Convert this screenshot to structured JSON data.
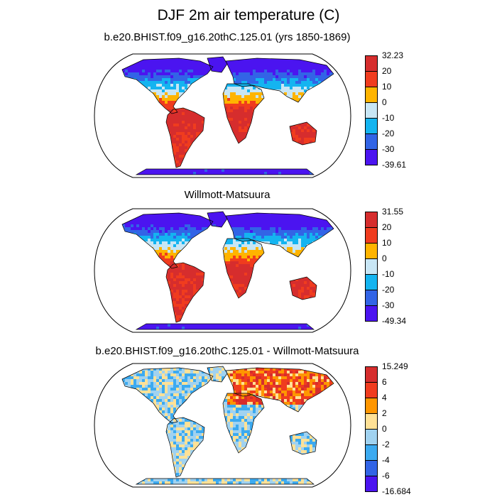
{
  "chart_data": [
    {
      "type": "heatmap",
      "title": "DJF 2m air temperature (C)",
      "subtitle": "b.e20.BHIST.f09_g16.20thC.125.01 (yrs 1850-1869)",
      "projection": "Robinson",
      "colorbar": {
        "labels": [
          "32.23",
          "20",
          "10",
          "0",
          "-10",
          "-20",
          "-30",
          "-39.61"
        ],
        "colors": [
          "#d62d2d",
          "#f03c1e",
          "#ffb400",
          "#c8e6f5",
          "#14b4f0",
          "#3264e6",
          "#4b14f0"
        ]
      }
    },
    {
      "type": "heatmap",
      "title": "Willmott-Matsuura",
      "projection": "Robinson",
      "colorbar": {
        "labels": [
          "31.55",
          "20",
          "10",
          "0",
          "-10",
          "-20",
          "-30",
          "-49.34"
        ],
        "colors": [
          "#d62d2d",
          "#f03c1e",
          "#ffb400",
          "#c8e6f5",
          "#14b4f0",
          "#3264e6",
          "#4b14f0"
        ]
      }
    },
    {
      "type": "heatmap",
      "title": "b.e20.BHIST.f09_g16.20thC.125.01 - Willmott-Matsuura",
      "projection": "Robinson",
      "colorbar": {
        "labels": [
          "15.249",
          "6",
          "4",
          "2",
          "0",
          "-2",
          "-4",
          "-6",
          "-16.684"
        ],
        "colors": [
          "#d62d2d",
          "#f03c1e",
          "#ff9600",
          "#ffe196",
          "#a0d2f0",
          "#3caaf0",
          "#3264e6",
          "#4b14f0"
        ]
      }
    }
  ]
}
